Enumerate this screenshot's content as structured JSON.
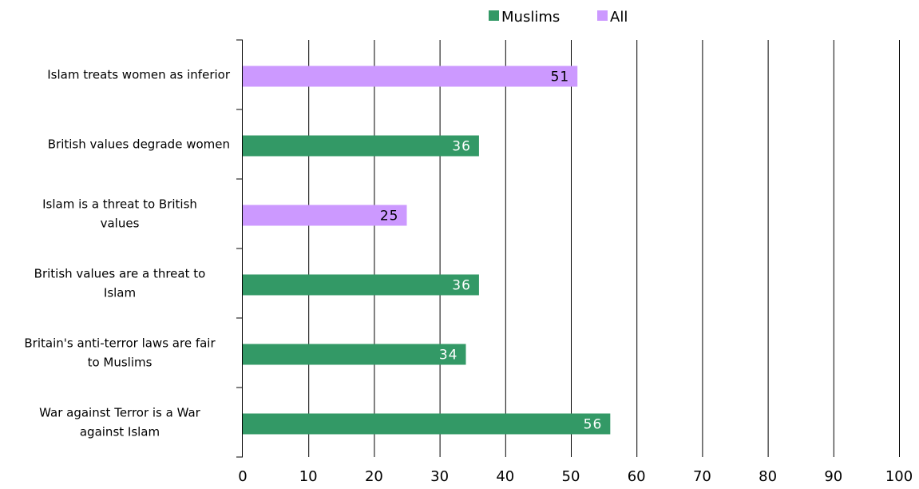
{
  "chart_data": {
    "type": "bar",
    "orientation": "horizontal",
    "categories": [
      [
        "Islam treats women as inferior"
      ],
      [
        "British values degrade women"
      ],
      [
        "Islam is a threat to British",
        "values"
      ],
      [
        "British values are a threat to",
        "Islam"
      ],
      [
        "Britain's anti-terror laws are fair",
        "to Muslims"
      ],
      [
        "War against Terror is a War",
        "against Islam"
      ]
    ],
    "series": [
      {
        "name": "Muslims",
        "color": "#339966",
        "values": [
          null,
          36,
          null,
          36,
          34,
          56
        ]
      },
      {
        "name": "All",
        "color": "#CC99FF",
        "values": [
          51,
          null,
          25,
          null,
          null,
          null
        ]
      }
    ],
    "xlim": [
      0,
      100
    ],
    "xticks": [
      0,
      10,
      20,
      30,
      40,
      50,
      60,
      70,
      80,
      90,
      100
    ],
    "title": "",
    "xlabel": "",
    "ylabel": "",
    "grid": "vertical",
    "legend_position": "top"
  }
}
